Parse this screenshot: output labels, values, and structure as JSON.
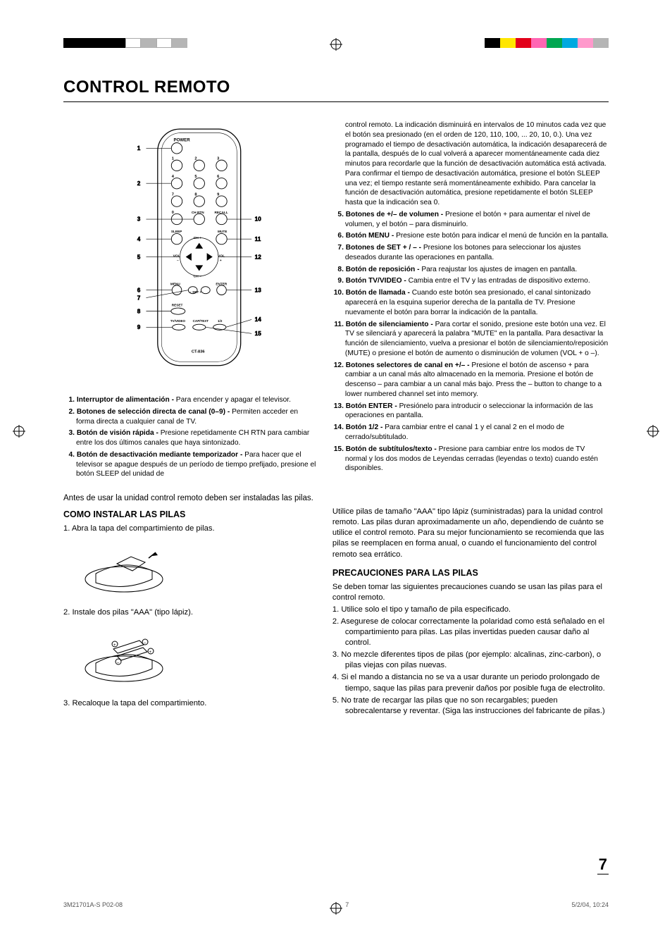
{
  "page": {
    "title": "CONTROL REMOTO",
    "page_number": "7",
    "footer_left": "3M21701A-S P02-08",
    "footer_center": "7",
    "footer_right": "5/2/04, 10:24"
  },
  "remote": {
    "model": "CT-836",
    "labels": {
      "power": "POWER",
      "chrtn": "CH RTN",
      "recall": "RECALL",
      "sleep": "SLEEP",
      "mute": "MUTE",
      "chplus": "CH +",
      "chminus": "CH –",
      "volmin": "VOL –",
      "volmax": "VOL +",
      "menu": "MENU",
      "enter": "ENTER",
      "setminus": "– SET +",
      "reset": "RESET",
      "tvvideo": "TV/VIDEO",
      "captext": "CAP/TEXT",
      "half": "1/2"
    },
    "callouts_left": [
      "1",
      "2",
      "3",
      "4",
      "5",
      "6",
      "7",
      "8",
      "9"
    ],
    "callouts_right": [
      "10",
      "11",
      "12",
      "13",
      "14",
      "15"
    ]
  },
  "buttons": [
    {
      "n": "1.",
      "b": "Interruptor de alimentación - ",
      "t": "Para encender y apagar el televisor."
    },
    {
      "n": "2.",
      "b": "Botones de selección directa de canal (0–9) - ",
      "t": "Permiten acceder en forma directa a cualquier canal de TV."
    },
    {
      "n": "3.",
      "b": "Botón de visión rápida - ",
      "t": "Presione repetidamente CH RTN para cambiar entre los dos últimos canales que haya sintonizado."
    },
    {
      "n": "4.",
      "b": "Botón de desactivación mediante temporizador - ",
      "t": "Para hacer que el televisor se apague después de un período de tiempo prefijado, presione el botón SLEEP del unidad de"
    }
  ],
  "buttons_right": [
    {
      "n": "",
      "b": "",
      "t": "control remoto. La indicación disminuirá en intervalos de 10 minutos cada vez que el botón sea presionado (en el orden de 120, 110, 100, ... 20, 10, 0.). Una vez programado el tiempo de desactivación automática, la indicación desaparecerá de la pantalla, después de lo cual volverá a aparecer momentáneamente cada diez minutos para recordarle que la función de desactivación automática está activada. Para confirmar el tiempo de desactivación automática, presione el botón SLEEP una vez; el tiempo restante será momentáneamente exhibido. Para cancelar la función de desactivación automática, presione repetidamente el botón SLEEP hasta que la indicación sea 0."
    },
    {
      "n": "5.",
      "b": "Botones de +/– de volumen - ",
      "t": "Presione el botón + para aumentar el nivel de volumen, y el botón – para disminuirlo."
    },
    {
      "n": "6.",
      "b": "Botón MENU - ",
      "t": "Presione este botón para indicar el menú de función en la pantalla."
    },
    {
      "n": "7.",
      "b": "Botones de SET + / – - ",
      "t": "Presione los botones para seleccionar los ajustes deseados durante las operaciones en pantalla."
    },
    {
      "n": "8.",
      "b": "Botón de reposición - ",
      "t": "Para reajustar los ajustes de imagen en pantalla."
    },
    {
      "n": "9.",
      "b": "Botón TV/VIDEO - ",
      "t": "Cambia entre el TV y las entradas de dispositivo externo."
    },
    {
      "n": "10.",
      "b": "Botón de llamada - ",
      "t": "Cuando este botón sea presionado, el canal sintonizado aparecerá en la esquina superior derecha de la pantalla de TV. Presione nuevamente el botón para borrar la indicación de la pantalla."
    },
    {
      "n": "11.",
      "b": "Botón de silenciamiento - ",
      "t": "Para cortar el sonido, presione este botón una vez. El TV se silenciará y aparecerá la palabra \"MUTE\" en la pantalla. Para desactivar la función de silenciamiento, vuelva a presionar el botón de silenciamiento/reposición (MUTE) o presione el botón de aumento o disminución de volumen (VOL + o –)."
    },
    {
      "n": "12.",
      "b": "Botones selectores de canal en +/– - ",
      "t": "Presione el botón de ascenso + para cambiar a un canal más alto almacenado en la memoria. Presione el botón de descenso – para cambiar a un canal más bajo. Press the – button to change to a lower numbered channel set into memory."
    },
    {
      "n": "13.",
      "b": "Botón ENTER - ",
      "t": "Presiónelo para introducir o seleccionar la información de las operaciones en pantalla."
    },
    {
      "n": "14.",
      "b": "Botón 1/2 - ",
      "t": "Para cambiar entre el canal 1 y el canal 2 en el modo de cerrado/subtitulado."
    },
    {
      "n": "15.",
      "b": "Botón de subtítulos/texto - ",
      "t": "Presione para cambiar entre los modos de TV normal y los dos modos de Leyendas cerradas (leyendas o texto) cuando estén disponibles."
    }
  ],
  "install": {
    "intro": "Antes de usar la unidad control remoto deben ser instaladas las pilas.",
    "heading": "COMO INSTALAR LAS PILAS",
    "step1": "1. Abra la tapa del compartimiento de pilas.",
    "step2": "2.  Instale dos pilas \"AAA\" (tipo lápiz).",
    "step3": "3. Recaloque la tapa del compartimiento.",
    "right_intro": "Utilice pilas de tamaño \"AAA\" tipo lápiz (suministradas) para la unidad control remoto. Las pilas duran aproximadamente un año, dependiendo de cuánto se utilice el control remoto. Para su mejor funcionamiento se recomienda que las pilas se reemplacen en forma anual, o cuando el funcionamiento del control remoto sea errático.",
    "prec_heading": "PRECAUCIONES PARA LAS PILAS",
    "prec_intro": "Se deben tomar las siguientes precauciones cuando se usan las pilas para el control remoto.",
    "precautions": [
      "1.  Utilice solo el tipo y tamaño de pila especificado.",
      "2.  Asegurese de colocar correctamente la polaridad como está señalado en el compartimiento para pilas. Las pilas invertidas pueden causar daño al control.",
      "3.  No mezcle diferentes tipos de pilas (por ejemplo: alcalinas, zinc-carbon), o pilas viejas con pilas nuevas.",
      "4.  Si el mando a distancia no se va a usar durante un periodo prolongado de tiempo, saque las pilas para prevenir daños por posible fuga de electrolito.",
      "5.  No trate de recargar las pilas que no son recargables; pueden sobrecalentarse y reventar. (Siga las instrucciones del fabricante de pilas.)"
    ]
  },
  "colors": {
    "reg_left": [
      "#000",
      "#000",
      "#000",
      "#000",
      "#fff",
      "#b5b5b5",
      "#fff",
      "#b5b5b5"
    ],
    "reg_right": [
      "#000",
      "#ffe600",
      "#e2001a",
      "#ff66b3",
      "#00a651",
      "#00a9e0",
      "#ff9999",
      "#b5b5b5"
    ]
  }
}
